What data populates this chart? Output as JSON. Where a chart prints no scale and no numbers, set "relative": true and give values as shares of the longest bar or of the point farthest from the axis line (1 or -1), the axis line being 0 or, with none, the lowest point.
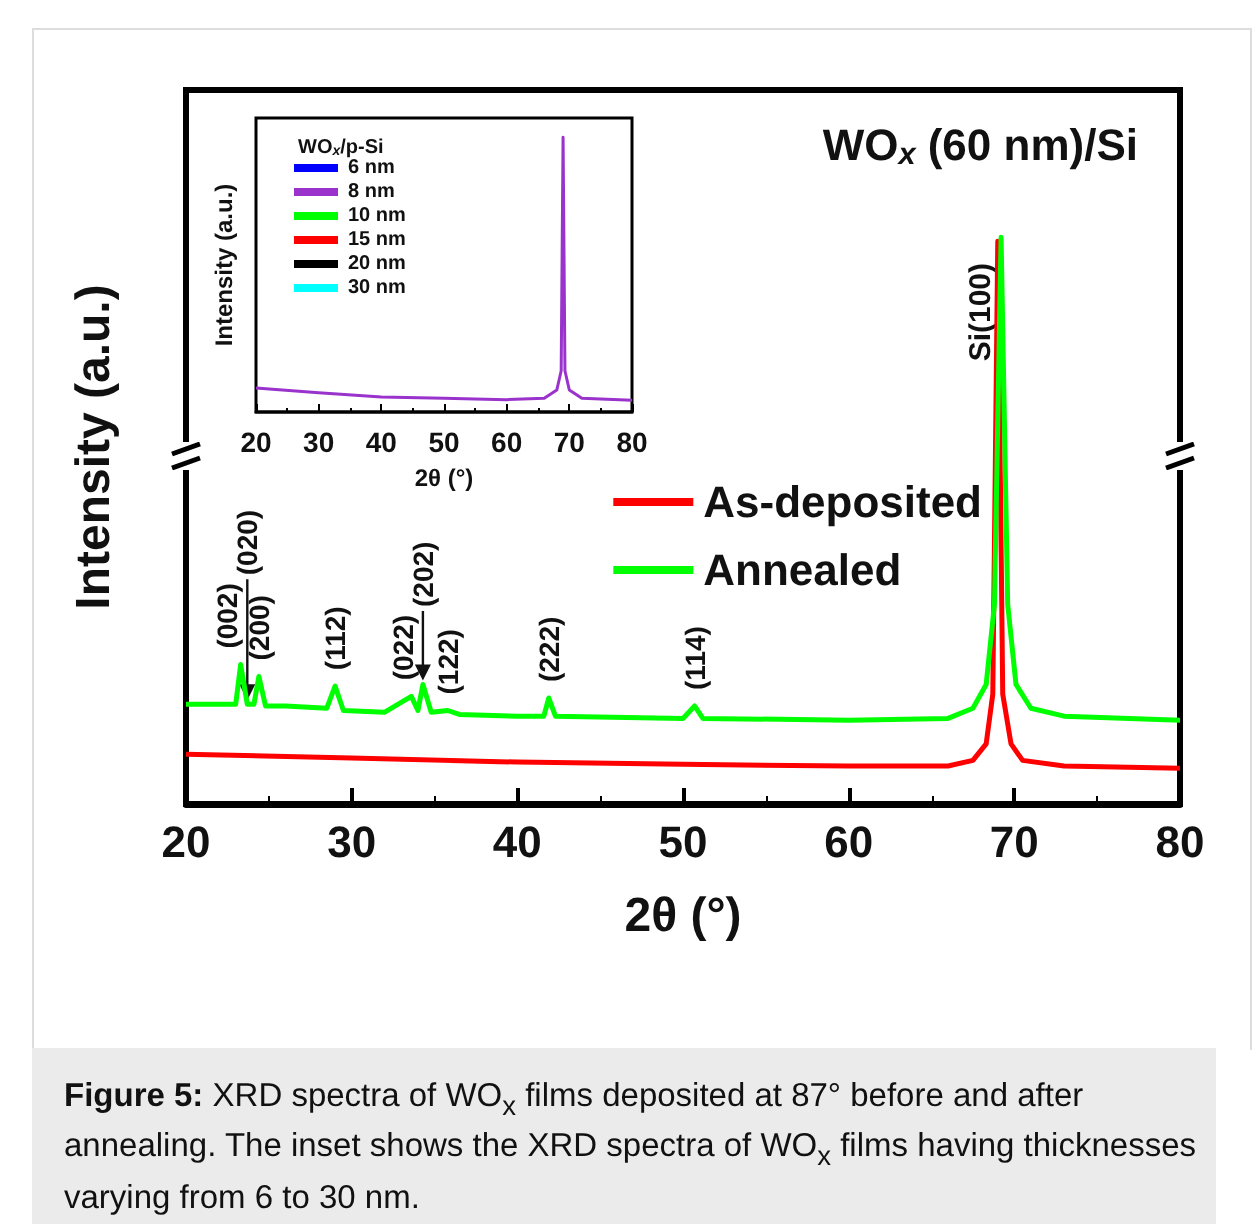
{
  "chart_data": [
    {
      "type": "line",
      "title": "WO$_{x}$ (60 nm)/Si",
      "xlabel": "2θ (°)",
      "ylabel": "Intensity (a.u.)",
      "relative": true,
      "xlim": [
        20,
        80
      ],
      "xticks": [
        20,
        30,
        40,
        50,
        60,
        70,
        80
      ],
      "tick_labels": "x",
      "legend": "right",
      "series": [
        {
          "name": "As-deposited",
          "color": "#ff0000",
          "x": [
            20,
            30,
            40,
            50,
            60,
            66,
            67.5,
            68.3,
            68.7,
            69.0,
            69.3,
            69.8,
            70.5,
            73,
            80
          ],
          "values": [
            0.088,
            0.081,
            0.074,
            0.07,
            0.067,
            0.067,
            0.077,
            0.106,
            0.194,
            0.993,
            0.194,
            0.106,
            0.077,
            0.067,
            0.063
          ]
        },
        {
          "name": "Annealed",
          "color": "#00ff00",
          "x": [
            20,
            22,
            23,
            23.3,
            23.7,
            24.1,
            24.4,
            24.8,
            26,
            28.5,
            29,
            29.5,
            32,
            33.6,
            34,
            34.3,
            34.8,
            35.8,
            36.5,
            40,
            41.6,
            41.9,
            42.3,
            50,
            50.7,
            51.2,
            60,
            66,
            67.5,
            68.3,
            68.8,
            69.2,
            69.6,
            70.1,
            71,
            73,
            80
          ],
          "values": [
            0.176,
            0.176,
            0.176,
            0.246,
            0.176,
            0.176,
            0.225,
            0.173,
            0.173,
            0.169,
            0.208,
            0.165,
            0.162,
            0.19,
            0.165,
            0.211,
            0.162,
            0.165,
            0.158,
            0.155,
            0.155,
            0.187,
            0.155,
            0.151,
            0.173,
            0.151,
            0.148,
            0.151,
            0.169,
            0.211,
            0.352,
            1,
            0.352,
            0.211,
            0.169,
            0.155,
            0.148
          ]
        }
      ],
      "annotations": [
        {
          "text": "(002)",
          "x": 23.3,
          "y": 0.246
        },
        {
          "text": "(020)",
          "x": 23.7,
          "y": 0.176
        },
        {
          "text": "(200)",
          "x": 24.4,
          "y": 0.225
        },
        {
          "text": "(112)",
          "x": 29,
          "y": 0.208
        },
        {
          "text": "(022)",
          "x": 33.6,
          "y": 0.19
        },
        {
          "text": "(202)",
          "x": 34.3,
          "y": 0.211
        },
        {
          "text": "(122)",
          "x": 35.8,
          "y": 0.165
        },
        {
          "text": "(222)",
          "x": 41.9,
          "y": 0.187
        },
        {
          "text": "(114)",
          "x": 50.7,
          "y": 0.173
        },
        "Si(100)",
        "Figure 5: XRD spectra of WO$_{x}$ films deposited at 87° before and after annealing. The inset shows the XRD spectra of WO$_{x}$ films having thicknesses varying from 6 to 30 nm."
      ]
    },
    {
      "type": "line",
      "xlabel": "2θ (°)",
      "ylabel": "Intensity (a.u.)",
      "legend_title": "WO$_{x}$/p-Si",
      "relative": true,
      "xlim": [
        20,
        80
      ],
      "xticks": [
        20,
        30,
        40,
        50,
        60,
        70,
        80
      ],
      "tick_labels": "x",
      "legend": "top left",
      "series": [
        {
          "name": "6 nm",
          "color": "#0000ff"
        },
        {
          "name": "8 nm",
          "color": "#9933cc",
          "x": [
            20,
            30,
            40,
            50,
            60,
            66,
            68,
            68.7,
            69.0,
            69.3,
            70,
            72,
            80
          ],
          "values": [
            0.087,
            0.07,
            0.055,
            0.05,
            0.045,
            0.05,
            0.08,
            0.15,
            1,
            0.15,
            0.08,
            0.05,
            0.043
          ]
        },
        {
          "name": "10 nm",
          "color": "#00ff00"
        },
        {
          "name": "15 nm",
          "color": "#ff0000"
        },
        {
          "name": "20 nm",
          "color": "#000000"
        },
        {
          "name": "30 nm",
          "color": "#00ffff"
        }
      ]
    }
  ]
}
